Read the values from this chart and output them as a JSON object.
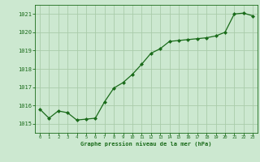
{
  "x": [
    0,
    1,
    2,
    3,
    4,
    5,
    6,
    7,
    8,
    9,
    10,
    11,
    12,
    13,
    14,
    15,
    16,
    17,
    18,
    19,
    20,
    21,
    22,
    23
  ],
  "y": [
    1015.8,
    1015.3,
    1015.7,
    1015.6,
    1015.2,
    1015.25,
    1015.3,
    1016.2,
    1016.95,
    1017.25,
    1017.7,
    1018.25,
    1018.85,
    1019.1,
    1019.5,
    1019.55,
    1019.6,
    1019.65,
    1019.7,
    1019.8,
    1020.0,
    1021.0,
    1021.05,
    1020.9
  ],
  "line_color": "#1a6b1a",
  "marker_color": "#1a6b1a",
  "bg_color": "#cce8d0",
  "grid_color": "#aaccaa",
  "xlabel": "Graphe pression niveau de la mer (hPa)",
  "xlabel_color": "#1a6b1a",
  "tick_color": "#1a6b1a",
  "ylim": [
    1014.5,
    1021.5
  ],
  "xlim": [
    -0.5,
    23.5
  ],
  "yticks": [
    1015,
    1016,
    1017,
    1018,
    1019,
    1020,
    1021
  ],
  "xticks": [
    0,
    1,
    2,
    3,
    4,
    5,
    6,
    7,
    8,
    9,
    10,
    11,
    12,
    13,
    14,
    15,
    16,
    17,
    18,
    19,
    20,
    21,
    22,
    23
  ],
  "figsize": [
    3.2,
    2.0
  ],
  "dpi": 100
}
